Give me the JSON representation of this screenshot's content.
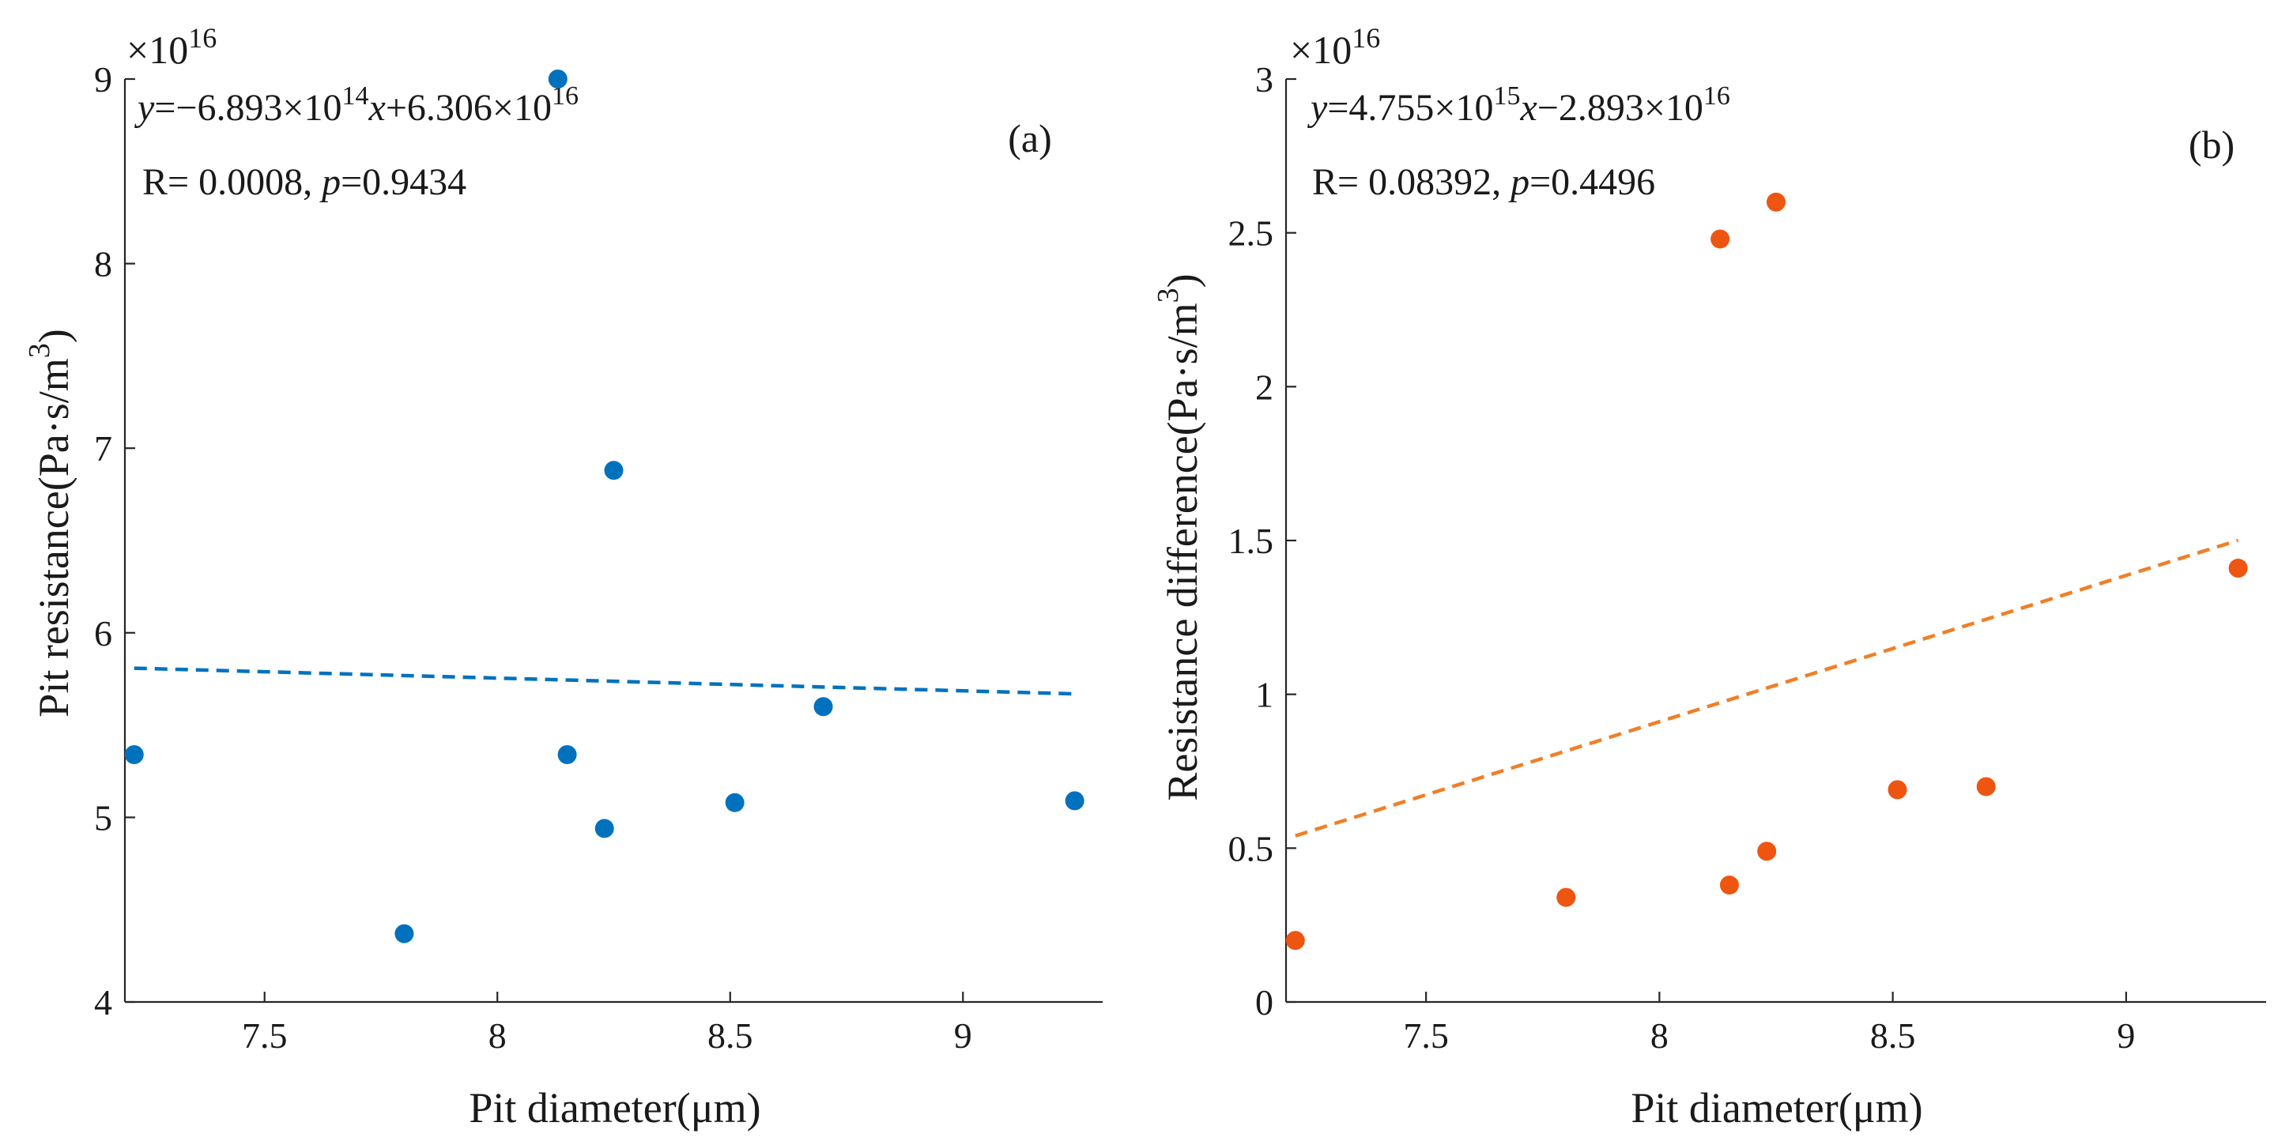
{
  "chart_data": [
    {
      "panel": "(a)",
      "type": "scatter",
      "xlabel": "Pit diameter(μm)",
      "ylabel": "Pit resistance(Pa·s/m³)",
      "ylabel_parts": [
        "Pit resistance(Pa·s/m",
        "3",
        ")"
      ],
      "xlim": [
        7.2,
        9.3
      ],
      "ylim": [
        4,
        9
      ],
      "xticks": [
        7.5,
        8,
        8.5,
        9
      ],
      "yticks": [
        4,
        5,
        6,
        7,
        8,
        9
      ],
      "xtick_labels": [
        "7.5",
        "8",
        "8.5",
        "9"
      ],
      "ytick_labels": [
        "4",
        "5",
        "6",
        "7",
        "8",
        "9"
      ],
      "y_exponent": {
        "base": "×10",
        "power": "16"
      },
      "equation": {
        "lhs": "y",
        "eq": "=−6.893×10",
        "exp1": "14",
        "x": "x",
        "plus": "+6.306×10",
        "exp2": "16"
      },
      "stats": {
        "r": "R= 0.0008, ",
        "p_symbol": "p",
        "p_value": "=0.9434"
      },
      "color": "#0072BD",
      "x": [
        7.22,
        7.8,
        8.13,
        8.15,
        8.23,
        8.25,
        8.51,
        8.7,
        9.24
      ],
      "y": [
        5.34,
        4.37,
        9.0,
        5.34,
        4.94,
        6.88,
        5.08,
        5.6,
        5.09
      ],
      "fit": {
        "slope": -0.06893,
        "intercept": 6.306,
        "x_range": [
          7.22,
          9.24
        ]
      }
    },
    {
      "panel": "(b)",
      "type": "scatter",
      "xlabel": "Pit diameter(μm)",
      "ylabel": "Resistance difference(Pa·s/m³)",
      "ylabel_parts": [
        "Resistance difference(Pa·s/m",
        "3",
        ")"
      ],
      "xlim": [
        7.2,
        9.3
      ],
      "ylim": [
        0,
        3
      ],
      "xticks": [
        7.5,
        8,
        8.5,
        9
      ],
      "yticks": [
        0,
        0.5,
        1,
        1.5,
        2,
        2.5,
        3
      ],
      "xtick_labels": [
        "7.5",
        "8",
        "8.5",
        "9"
      ],
      "ytick_labels": [
        "0",
        "0.5",
        "1",
        "1.5",
        "2",
        "2.5",
        "3"
      ],
      "y_exponent": {
        "base": "×10",
        "power": "16"
      },
      "equation": {
        "lhs": "y",
        "eq": "=4.755×10",
        "exp1": "15",
        "x": "x",
        "plus": "−2.893×10",
        "exp2": "16"
      },
      "stats": {
        "r": "R= 0.08392, ",
        "p_symbol": "p",
        "p_value": "=0.4496"
      },
      "color": "#EE5511",
      "fit_color": "#F07F27",
      "x": [
        7.22,
        7.8,
        8.13,
        8.15,
        8.23,
        8.25,
        8.51,
        8.7,
        9.24
      ],
      "y": [
        0.2,
        0.34,
        2.48,
        0.38,
        0.49,
        2.6,
        0.69,
        0.7,
        1.41
      ],
      "fit": {
        "slope": 0.4755,
        "intercept": -2.893,
        "x_range": [
          7.22,
          9.24
        ]
      }
    }
  ]
}
